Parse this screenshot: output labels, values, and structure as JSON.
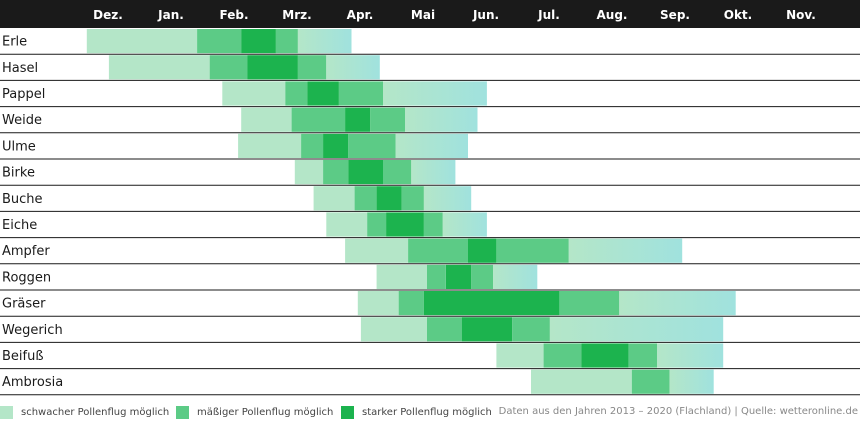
{
  "chart_data": {
    "type": "gantt",
    "months": [
      "Dez.",
      "Jan.",
      "Feb.",
      "Mrz.",
      "Apr.",
      "Mai",
      "Jun.",
      "Jul.",
      "Aug.",
      "Sep.",
      "Okt.",
      "Nov."
    ],
    "rows": [
      {
        "name": "Erle",
        "segments": [
          {
            "level": "schwach",
            "start": 0.45,
            "end": 2.2
          },
          {
            "level": "mäßig",
            "start": 2.2,
            "end": 2.9
          },
          {
            "level": "stark",
            "start": 2.9,
            "end": 3.45
          },
          {
            "level": "mäßig",
            "start": 3.45,
            "end": 3.8
          },
          {
            "level": "schwach",
            "start": 3.8,
            "end": 4.65
          }
        ]
      },
      {
        "name": "Hasel",
        "segments": [
          {
            "level": "schwach",
            "start": 0.8,
            "end": 2.4
          },
          {
            "level": "mäßig",
            "start": 2.4,
            "end": 3.0
          },
          {
            "level": "stark",
            "start": 3.0,
            "end": 3.8
          },
          {
            "level": "mäßig",
            "start": 3.8,
            "end": 4.25
          },
          {
            "level": "schwach",
            "start": 4.25,
            "end": 5.1
          }
        ]
      },
      {
        "name": "Pappel",
        "segments": [
          {
            "level": "schwach",
            "start": 2.6,
            "end": 3.6
          },
          {
            "level": "mäßig",
            "start": 3.6,
            "end": 3.95
          },
          {
            "level": "stark",
            "start": 3.95,
            "end": 4.45
          },
          {
            "level": "mäßig",
            "start": 4.45,
            "end": 5.15
          },
          {
            "level": "schwach",
            "start": 5.15,
            "end": 6.8
          }
        ]
      },
      {
        "name": "Weide",
        "segments": [
          {
            "level": "schwach",
            "start": 2.9,
            "end": 3.7
          },
          {
            "level": "mäßig",
            "start": 3.7,
            "end": 4.55
          },
          {
            "level": "stark",
            "start": 4.55,
            "end": 4.95
          },
          {
            "level": "mäßig",
            "start": 4.95,
            "end": 5.5
          },
          {
            "level": "schwach",
            "start": 5.5,
            "end": 6.65
          }
        ]
      },
      {
        "name": "Ulme",
        "segments": [
          {
            "level": "schwach",
            "start": 2.85,
            "end": 3.85
          },
          {
            "level": "mäßig",
            "start": 3.85,
            "end": 4.2
          },
          {
            "level": "stark",
            "start": 4.2,
            "end": 4.6
          },
          {
            "level": "mäßig",
            "start": 4.6,
            "end": 5.35
          },
          {
            "level": "schwach",
            "start": 5.35,
            "end": 6.5
          }
        ]
      },
      {
        "name": "Birke",
        "segments": [
          {
            "level": "schwach",
            "start": 3.75,
            "end": 4.2
          },
          {
            "level": "mäßig",
            "start": 4.2,
            "end": 4.6
          },
          {
            "level": "stark",
            "start": 4.6,
            "end": 5.15
          },
          {
            "level": "mäßig",
            "start": 5.15,
            "end": 5.6
          },
          {
            "level": "schwach",
            "start": 5.6,
            "end": 6.3
          }
        ]
      },
      {
        "name": "Buche",
        "segments": [
          {
            "level": "schwach",
            "start": 4.05,
            "end": 4.7
          },
          {
            "level": "mäßig",
            "start": 4.7,
            "end": 5.05
          },
          {
            "level": "stark",
            "start": 5.05,
            "end": 5.45
          },
          {
            "level": "mäßig",
            "start": 5.45,
            "end": 5.8
          },
          {
            "level": "schwach",
            "start": 5.8,
            "end": 6.55
          }
        ]
      },
      {
        "name": "Eiche",
        "segments": [
          {
            "level": "schwach",
            "start": 4.25,
            "end": 4.9
          },
          {
            "level": "mäßig",
            "start": 4.9,
            "end": 5.2
          },
          {
            "level": "stark",
            "start": 5.2,
            "end": 5.8
          },
          {
            "level": "mäßig",
            "start": 5.8,
            "end": 6.1
          },
          {
            "level": "schwach",
            "start": 6.1,
            "end": 6.8
          }
        ]
      },
      {
        "name": "Ampfer",
        "segments": [
          {
            "level": "schwach",
            "start": 4.55,
            "end": 5.55
          },
          {
            "level": "mäßig",
            "start": 5.55,
            "end": 6.5
          },
          {
            "level": "stark",
            "start": 6.5,
            "end": 6.95
          },
          {
            "level": "mäßig",
            "start": 6.95,
            "end": 8.1
          },
          {
            "level": "schwach",
            "start": 8.1,
            "end": 9.9
          }
        ]
      },
      {
        "name": "Roggen",
        "segments": [
          {
            "level": "schwach",
            "start": 5.05,
            "end": 5.85
          },
          {
            "level": "mäßig",
            "start": 5.85,
            "end": 6.15
          },
          {
            "level": "stark",
            "start": 6.15,
            "end": 6.55
          },
          {
            "level": "mäßig",
            "start": 6.55,
            "end": 6.9
          },
          {
            "level": "schwach",
            "start": 6.9,
            "end": 7.6
          }
        ]
      },
      {
        "name": "Gräser",
        "segments": [
          {
            "level": "schwach",
            "start": 4.75,
            "end": 5.4
          },
          {
            "level": "mäßig",
            "start": 5.4,
            "end": 5.8
          },
          {
            "level": "stark",
            "start": 5.8,
            "end": 7.95
          },
          {
            "level": "mäßig",
            "start": 7.95,
            "end": 8.9
          },
          {
            "level": "schwach",
            "start": 8.9,
            "end": 10.75
          }
        ]
      },
      {
        "name": "Wegerich",
        "segments": [
          {
            "level": "schwach",
            "start": 4.8,
            "end": 5.85
          },
          {
            "level": "mäßig",
            "start": 5.85,
            "end": 6.4
          },
          {
            "level": "stark",
            "start": 6.4,
            "end": 7.2
          },
          {
            "level": "mäßig",
            "start": 7.2,
            "end": 7.8
          },
          {
            "level": "schwach",
            "start": 7.8,
            "end": 10.55
          }
        ]
      },
      {
        "name": "Beifuß",
        "segments": [
          {
            "level": "schwach",
            "start": 6.95,
            "end": 7.7
          },
          {
            "level": "mäßig",
            "start": 7.7,
            "end": 8.3
          },
          {
            "level": "stark",
            "start": 8.3,
            "end": 9.05
          },
          {
            "level": "mäßig",
            "start": 9.05,
            "end": 9.5
          },
          {
            "level": "schwach",
            "start": 9.5,
            "end": 10.55
          }
        ]
      },
      {
        "name": "Ambrosia",
        "segments": [
          {
            "level": "schwach",
            "start": 7.5,
            "end": 9.1
          },
          {
            "level": "mäßig",
            "start": 9.1,
            "end": 9.7
          },
          {
            "level": "schwach",
            "start": 9.7,
            "end": 10.4
          }
        ]
      }
    ],
    "levels": {
      "schwach": {
        "label": "schwacher Pollenflug möglich",
        "color": "#b4e6c8"
      },
      "mäßig": {
        "label": "mäßiger Pollenflug möglich",
        "color": "#5ccb86"
      },
      "stark": {
        "label": "starker Pollenflug möglich",
        "color": "#1cb34e"
      }
    },
    "legend_order": [
      "schwach",
      "mäßig",
      "stark"
    ],
    "header_color": "#1a1a1a",
    "end_tint_color": "#a0e2de"
  },
  "source_note": "Daten aus den Jahren 2013 – 2020 (Flachland) | Quelle: wetteronline.de"
}
